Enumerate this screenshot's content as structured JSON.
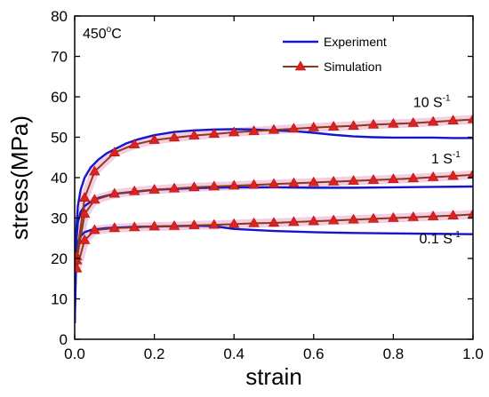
{
  "chart_data": {
    "type": "line",
    "xlabel": "strain",
    "ylabel": "stress(MPa)",
    "xlim": [
      0.0,
      1.0
    ],
    "ylim": [
      0,
      80
    ],
    "xticks": [
      0.0,
      0.2,
      0.4,
      0.6,
      0.8,
      1.0
    ],
    "xtick_labels": [
      "0.0",
      "0.2",
      "0.4",
      "0.6",
      "0.8",
      "1.0"
    ],
    "yticks": [
      0,
      10,
      20,
      30,
      40,
      50,
      60,
      70,
      80
    ],
    "ytick_labels": [
      "0",
      "10",
      "20",
      "30",
      "40",
      "50",
      "60",
      "70",
      "80"
    ],
    "grid": false,
    "legend_position": "top-right",
    "annotations": [
      {
        "text": "450",
        "sup": "o",
        "tail": "C",
        "x": 0.02,
        "y": 74.5
      },
      {
        "text": "10 S",
        "sup": "-1",
        "tail": "",
        "x": 0.85,
        "y": 57.5
      },
      {
        "text": "1 S",
        "sup": "-1",
        "tail": "",
        "x": 0.895,
        "y": 43.5
      },
      {
        "text": "0.1 S",
        "sup": "-1",
        "tail": "",
        "x": 0.865,
        "y": 23.7
      }
    ],
    "series": [
      {
        "name": "Experiment",
        "style": "line",
        "color": "#1515cc",
        "curves": [
          {
            "label": "10 S-1",
            "x": [
              0.0,
              0.004,
              0.008,
              0.015,
              0.025,
              0.04,
              0.06,
              0.08,
              0.1,
              0.13,
              0.16,
              0.2,
              0.25,
              0.3,
              0.35,
              0.4,
              0.45,
              0.5,
              0.55,
              0.6,
              0.65,
              0.7,
              0.75,
              0.8,
              0.85,
              0.9,
              0.95,
              1.0
            ],
            "y": [
              4,
              27,
              33,
              37,
              40,
              42.5,
              44.5,
              46,
              47,
              48.5,
              49.5,
              50.5,
              51.3,
              51.7,
              51.9,
              52.0,
              51.9,
              51.7,
              51.5,
              51.1,
              50.6,
              50.2,
              50.0,
              49.9,
              49.9,
              49.9,
              49.8,
              49.8
            ]
          },
          {
            "label": "1 S-1",
            "x": [
              0.0,
              0.004,
              0.008,
              0.015,
              0.025,
              0.04,
              0.06,
              0.08,
              0.1,
              0.15,
              0.2,
              0.3,
              0.4,
              0.5,
              0.6,
              0.7,
              0.8,
              0.9,
              1.0
            ],
            "y": [
              4,
              24,
              29,
              31.5,
              33,
              34,
              35,
              35.5,
              36,
              36.5,
              37,
              37.4,
              37.6,
              37.6,
              37.5,
              37.5,
              37.6,
              37.7,
              37.8
            ]
          },
          {
            "label": "0.1 S-1",
            "x": [
              0.0,
              0.004,
              0.008,
              0.015,
              0.025,
              0.04,
              0.06,
              0.08,
              0.1,
              0.15,
              0.2,
              0.3,
              0.35,
              0.4,
              0.5,
              0.6,
              0.7,
              0.8,
              0.9,
              1.0
            ],
            "y": [
              4,
              20,
              24,
              25.5,
              26.5,
              27,
              27.3,
              27.5,
              27.6,
              27.8,
              27.9,
              28.1,
              28.0,
              27.3,
              26.8,
              26.5,
              26.3,
              26.2,
              26.1,
              26.0
            ]
          }
        ]
      },
      {
        "name": "Simulation",
        "style": "line+triangle",
        "color": "#8a3a1a",
        "marker_color": "#dd2222",
        "curves": [
          {
            "label": "10 S-1",
            "x": [
              0.005,
              0.025,
              0.05,
              0.1,
              0.15,
              0.2,
              0.25,
              0.3,
              0.35,
              0.4,
              0.45,
              0.5,
              0.55,
              0.6,
              0.65,
              0.7,
              0.75,
              0.8,
              0.85,
              0.9,
              0.95,
              1.0
            ],
            "y": [
              20.5,
              35,
              41.5,
              46.2,
              48.2,
              49.3,
              49.9,
              50.4,
              50.8,
              51.2,
              51.5,
              51.8,
              52.1,
              52.4,
              52.6,
              52.8,
              53.1,
              53.3,
              53.5,
              53.8,
              54.1,
              54.4
            ]
          },
          {
            "label": "1 S-1",
            "x": [
              0.005,
              0.025,
              0.05,
              0.1,
              0.15,
              0.2,
              0.25,
              0.3,
              0.35,
              0.4,
              0.45,
              0.5,
              0.55,
              0.6,
              0.65,
              0.7,
              0.75,
              0.8,
              0.85,
              0.9,
              0.95,
              1.0
            ],
            "y": [
              19.5,
              31,
              34.5,
              36,
              36.6,
              37,
              37.3,
              37.6,
              37.8,
              38,
              38.2,
              38.4,
              38.6,
              38.8,
              39,
              39.2,
              39.4,
              39.6,
              39.8,
              40.1,
              40.4,
              40.7
            ]
          },
          {
            "label": "0.1 S-1",
            "x": [
              0.005,
              0.025,
              0.05,
              0.1,
              0.15,
              0.2,
              0.25,
              0.3,
              0.35,
              0.4,
              0.45,
              0.5,
              0.55,
              0.6,
              0.65,
              0.7,
              0.75,
              0.8,
              0.85,
              0.9,
              0.95,
              1.0
            ],
            "y": [
              17.5,
              24.5,
              27,
              27.5,
              27.7,
              27.9,
              28,
              28.2,
              28.3,
              28.5,
              28.7,
              28.8,
              29,
              29.2,
              29.4,
              29.6,
              29.8,
              30,
              30.2,
              30.4,
              30.6,
              30.9
            ]
          }
        ]
      }
    ]
  }
}
